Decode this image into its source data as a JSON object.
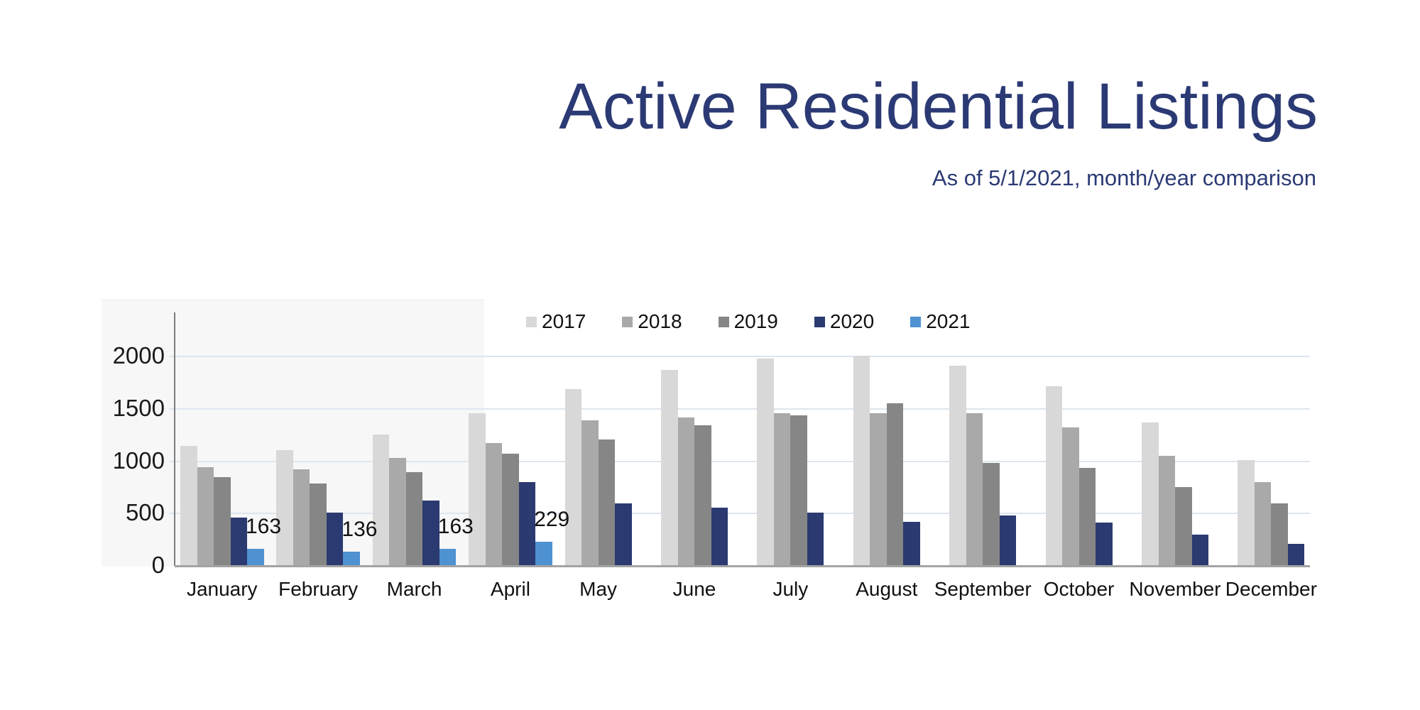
{
  "title": "Active Residential Listings",
  "subtitle": "As of 5/1/2021, month/year comparison",
  "colors": {
    "title_text": "#2b3a74",
    "subtitle_text": "#2b3a74",
    "gridline": "#dde6ee",
    "y_axis_line": "#7d7d7d",
    "x_axis_line": "#a3a3a3",
    "plot_backdrop": "#f7f7f7",
    "tick_text": "#1a1a1a"
  },
  "chart_data": {
    "type": "bar",
    "title": "Active Residential Listings",
    "subtitle": "As of 5/1/2021, month/year comparison",
    "categories": [
      "January",
      "February",
      "March",
      "April",
      "May",
      "June",
      "July",
      "August",
      "September",
      "October",
      "November",
      "December"
    ],
    "series": [
      {
        "name": "2017",
        "color": "#d8d8d8",
        "values": [
          1145,
          1105,
          1255,
          1460,
          1690,
          1870,
          1980,
          2010,
          1915,
          1715,
          1370,
          1010
        ]
      },
      {
        "name": "2018",
        "color": "#a9a9a9",
        "values": [
          940,
          920,
          1030,
          1170,
          1390,
          1415,
          1460,
          1460,
          1460,
          1325,
          1050,
          800
        ]
      },
      {
        "name": "2019",
        "color": "#868686",
        "values": [
          850,
          785,
          895,
          1070,
          1210,
          1345,
          1440,
          1555,
          985,
          935,
          755,
          595
        ]
      },
      {
        "name": "2020",
        "color": "#2b3a70",
        "values": [
          460,
          510,
          625,
          800,
          600,
          555,
          510,
          420,
          480,
          415,
          300,
          210
        ]
      },
      {
        "name": "2021",
        "color": "#4e92d2",
        "values": [
          163,
          136,
          163,
          229,
          null,
          null,
          null,
          null,
          null,
          null,
          null,
          null
        ],
        "data_labels": true
      }
    ],
    "data_labels_2021": [
      "163",
      "136",
      "163",
      "229"
    ],
    "xlabel": "",
    "ylabel": "",
    "yticks": [
      0,
      500,
      1000,
      1500,
      2000
    ],
    "ylim": [
      0,
      2500
    ],
    "grid": true,
    "legend_position": "top-center",
    "legend_entries": [
      "2017",
      "2018",
      "2019",
      "2020",
      "2021"
    ]
  }
}
